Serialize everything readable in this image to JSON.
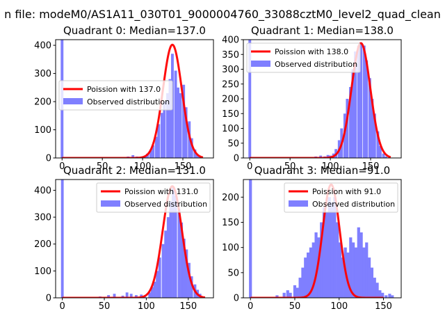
{
  "figure_title": "n file: modeM0/AS1A11_030T01_9000004760_33088cztM0_level2_quad_clean",
  "colors": {
    "line": "#ff0000",
    "bars": "#7f7fff",
    "axes": "#000000"
  },
  "chart_data": [
    {
      "type": "histogram",
      "title": "Quadrant 0: Median=137.0",
      "xlim": [
        -8,
        188
      ],
      "ylim": [
        0,
        420
      ],
      "xticks": [
        0,
        50,
        100,
        150
      ],
      "yticks": [
        0,
        100,
        200,
        300,
        400
      ],
      "legend_position": "center-left",
      "line_label": "Poission with 137.0",
      "bars_label": "Observed distribution",
      "line_mean": 137,
      "line_peak": 402,
      "line_sigma": 11.7,
      "line_xrange": [
        0,
        175
      ],
      "bar_width": 3.4,
      "bars": [
        [
          0,
          420
        ],
        [
          82,
          5
        ],
        [
          88,
          10
        ],
        [
          93,
          5
        ],
        [
          100,
          5
        ],
        [
          103,
          8
        ],
        [
          106,
          15
        ],
        [
          110,
          25
        ],
        [
          113,
          45
        ],
        [
          117,
          75
        ],
        [
          120,
          120
        ],
        [
          124,
          160
        ],
        [
          127,
          200
        ],
        [
          131,
          230
        ],
        [
          134,
          280
        ],
        [
          137,
          370
        ],
        [
          141,
          310
        ],
        [
          144,
          250
        ],
        [
          147,
          230
        ],
        [
          151,
          260
        ],
        [
          154,
          180
        ],
        [
          158,
          130
        ],
        [
          161,
          70
        ],
        [
          165,
          30
        ],
        [
          168,
          10
        ],
        [
          171,
          5
        ]
      ]
    },
    {
      "type": "histogram",
      "title": "Quadrant 1: Median=138.0",
      "xlim": [
        -8,
        188
      ],
      "ylim": [
        0,
        400
      ],
      "xticks": [
        0,
        50,
        100,
        150
      ],
      "yticks": [
        0,
        50,
        100,
        150,
        200,
        250,
        300,
        350,
        400
      ],
      "legend_position": "top-left",
      "line_label": "Poission with 138.0",
      "bars_label": "Observed distribution",
      "line_mean": 138,
      "line_peak": 388,
      "line_sigma": 11.7,
      "line_xrange": [
        0,
        175
      ],
      "bar_width": 3.4,
      "bars": [
        [
          0,
          400
        ],
        [
          82,
          5
        ],
        [
          88,
          8
        ],
        [
          93,
          5
        ],
        [
          97,
          10
        ],
        [
          100,
          8
        ],
        [
          104,
          15
        ],
        [
          107,
          30
        ],
        [
          111,
          60
        ],
        [
          114,
          100
        ],
        [
          118,
          150
        ],
        [
          121,
          200
        ],
        [
          125,
          240
        ],
        [
          128,
          300
        ],
        [
          131,
          360
        ],
        [
          135,
          380
        ],
        [
          138,
          390
        ],
        [
          142,
          380
        ],
        [
          145,
          330
        ],
        [
          149,
          270
        ],
        [
          152,
          200
        ],
        [
          155,
          150
        ],
        [
          159,
          90
        ],
        [
          162,
          40
        ],
        [
          166,
          15
        ],
        [
          169,
          5
        ]
      ]
    },
    {
      "type": "histogram",
      "title": "Quadrant 2: Median=131.0",
      "xlim": [
        -8,
        180
      ],
      "ylim": [
        0,
        440
      ],
      "xticks": [
        0,
        50,
        100,
        150
      ],
      "yticks": [
        0,
        100,
        200,
        300,
        400
      ],
      "legend_position": "top-right",
      "line_label": "Poission with 131.0",
      "bars_label": "Observed distribution",
      "line_mean": 131,
      "line_peak": 415,
      "line_sigma": 11.4,
      "line_xrange": [
        0,
        170
      ],
      "bar_width": 3.2,
      "bars": [
        [
          0,
          440
        ],
        [
          45,
          5
        ],
        [
          55,
          10
        ],
        [
          62,
          15
        ],
        [
          72,
          8
        ],
        [
          77,
          20
        ],
        [
          82,
          15
        ],
        [
          88,
          10
        ],
        [
          94,
          12
        ],
        [
          98,
          8
        ],
        [
          104,
          20
        ],
        [
          107,
          40
        ],
        [
          110,
          60
        ],
        [
          113,
          100
        ],
        [
          116,
          150
        ],
        [
          120,
          200
        ],
        [
          123,
          250
        ],
        [
          126,
          300
        ],
        [
          129,
          360
        ],
        [
          132,
          410
        ],
        [
          135,
          380
        ],
        [
          139,
          330
        ],
        [
          142,
          280
        ],
        [
          145,
          220
        ],
        [
          148,
          180
        ],
        [
          151,
          130
        ],
        [
          154,
          80
        ],
        [
          158,
          50
        ],
        [
          161,
          30
        ],
        [
          164,
          15
        ],
        [
          167,
          5
        ]
      ]
    },
    {
      "type": "histogram",
      "title": "Quadrant 3: Median=91.0",
      "xlim": [
        -8,
        170
      ],
      "ylim": [
        0,
        235
      ],
      "xticks": [
        0,
        50,
        100,
        150
      ],
      "yticks": [
        0,
        50,
        100,
        150,
        200
      ],
      "legend_position": "top-right",
      "line_label": "Poission with 91.0",
      "bars_label": "Observed distribution",
      "line_mean": 91,
      "line_peak": 225,
      "line_sigma": 9.5,
      "line_xrange": [
        0,
        150
      ],
      "bar_width": 3.3,
      "bars": [
        [
          0,
          235
        ],
        [
          30,
          5
        ],
        [
          38,
          10
        ],
        [
          42,
          15
        ],
        [
          45,
          10
        ],
        [
          50,
          25
        ],
        [
          53,
          20
        ],
        [
          56,
          40
        ],
        [
          59,
          60
        ],
        [
          62,
          80
        ],
        [
          65,
          90
        ],
        [
          68,
          100
        ],
        [
          71,
          110
        ],
        [
          74,
          130
        ],
        [
          77,
          120
        ],
        [
          80,
          150
        ],
        [
          83,
          180
        ],
        [
          86,
          170
        ],
        [
          89,
          200
        ],
        [
          92,
          190
        ],
        [
          95,
          200
        ],
        [
          98,
          150
        ],
        [
          101,
          110
        ],
        [
          104,
          80
        ],
        [
          107,
          100
        ],
        [
          110,
          90
        ],
        [
          113,
          120
        ],
        [
          116,
          110
        ],
        [
          119,
          100
        ],
        [
          122,
          140
        ],
        [
          125,
          130
        ],
        [
          128,
          100
        ],
        [
          131,
          110
        ],
        [
          134,
          80
        ],
        [
          137,
          60
        ],
        [
          140,
          40
        ],
        [
          143,
          30
        ],
        [
          146,
          15
        ],
        [
          149,
          10
        ],
        [
          153,
          5
        ],
        [
          157,
          8
        ],
        [
          160,
          5
        ]
      ]
    }
  ]
}
